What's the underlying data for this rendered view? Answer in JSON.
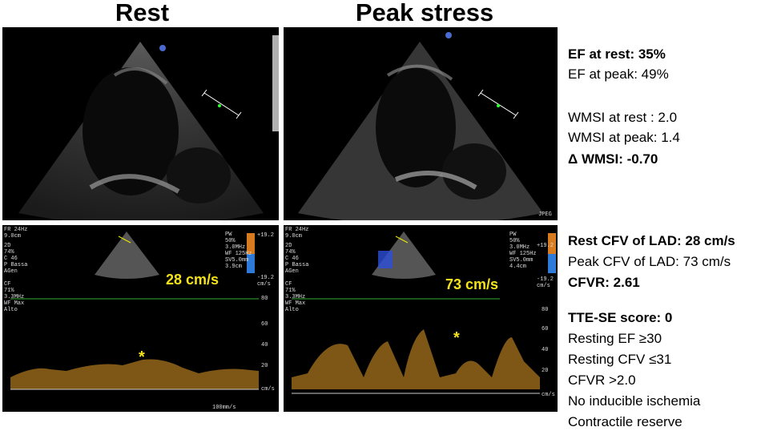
{
  "titles": {
    "rest": "Rest",
    "peak": "Peak stress"
  },
  "echo": {
    "jpeg_label": "JPEG"
  },
  "doppler": {
    "rest": {
      "header": "FR 24Hz\n9.0cm",
      "left_params": "2D\n74%\nC 46\nP Bassa\nAGen\n\nCF\n71%\n3.3MHz\nWF Max\nAlto",
      "right_params": "PW\n50%\n3.0MHz\nWF 125Hz\nSV5.0mm\n3.9cm",
      "velocity": "28 cm/s",
      "scale_top": "+19.2",
      "scale_bottom": "-19.2\ncm/s",
      "sweep": "100mm/s"
    },
    "peak": {
      "header": "FR 24Hz\n9.0cm",
      "left_params": "2D\n74%\nC 46\nP Bassa\nAGen\n\nCF\n71%\n3.3MHz\nWF Max\nAlto",
      "right_params": "PW\n50%\n3.0MHz\nWF 125Hz\nSV5.0mm\n4.4cm",
      "velocity": "73 cm/s",
      "scale_top": "+19.2",
      "scale_bottom": "-19.2\ncm/s"
    },
    "axis_ticks": [
      "80",
      "60",
      "40",
      "20"
    ],
    "axis_unit": "cm/s",
    "marker": "*"
  },
  "results": {
    "ef_rest": "EF at rest: 35%",
    "ef_peak": "EF at peak: 49%",
    "wmsi_rest": "WMSI at rest : 2.0",
    "wmsi_peak": "WMSI at peak: 1.4",
    "delta_wmsi": "Δ WMSI: -0.70",
    "cfv_rest": "Rest CFV of LAD: 28 cm/s",
    "cfv_peak": "Peak CFV of LAD:  73 cm/s",
    "cfvr": "CFVR: 2.61",
    "score": "TTE-SE score: 0",
    "criteria": [
      "Resting EF ≥30",
      "Resting CFV ≤31",
      "CFVR >2.0",
      "No inducible ischemia",
      "Contractile reserve"
    ]
  }
}
